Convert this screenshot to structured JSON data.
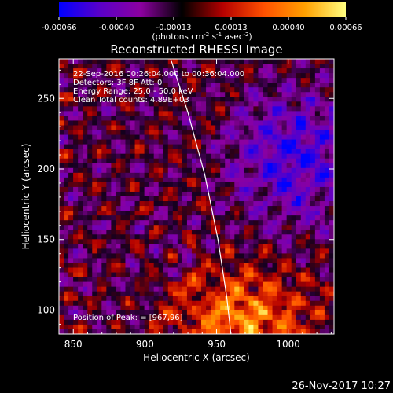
{
  "chart_data": {
    "type": "heatmap",
    "title": "Reconstructed RHESSI Image",
    "xlabel": "Heliocentric X (arcsec)",
    "ylabel": "Heliocentric Y (arcsec)",
    "xlim": [
      840,
      1032
    ],
    "ylim": [
      83,
      278
    ],
    "x_ticks": [
      850,
      900,
      950,
      1000
    ],
    "y_ticks": [
      100,
      150,
      200,
      250
    ],
    "colorbar": {
      "min": -0.00066,
      "max": 0.00066,
      "ticks": [
        "-0.00066",
        "-0.00040",
        "-0.00013",
        "0.00013",
        "0.00040",
        "0.00066"
      ],
      "label_main": "(photons cm",
      "label_exp1": "-2",
      "label_mid": " s",
      "label_exp2": "-1",
      "label_mid2": " asec",
      "label_exp3": "-2",
      "label_end": ")",
      "colors": [
        "#0000ff",
        "#5a00c8",
        "#8c00a0",
        "#000000",
        "#b40000",
        "#ff5000",
        "#ffa000",
        "#ffff80"
      ]
    },
    "annotations": {
      "line1": "22-Sep-2016 00:26:04.000 to 00:36:04.000",
      "line2": "Detectors: 3F 8F  Att: 0",
      "line3": "Energy Range: 25.0 - 50.0 keV",
      "line4": "Clean      Total counts: 4.89E+03",
      "peak": "Position of Peak: = [967,96]"
    },
    "limb_points": [
      [
        918,
        278
      ],
      [
        930,
        240
      ],
      [
        942,
        195
      ],
      [
        951,
        150
      ],
      [
        957,
        110
      ],
      [
        960,
        83
      ]
    ],
    "peak_position": [
      967,
      96
    ],
    "grid": false
  },
  "footer": {
    "timestamp": "26-Nov-2017 10:27"
  }
}
